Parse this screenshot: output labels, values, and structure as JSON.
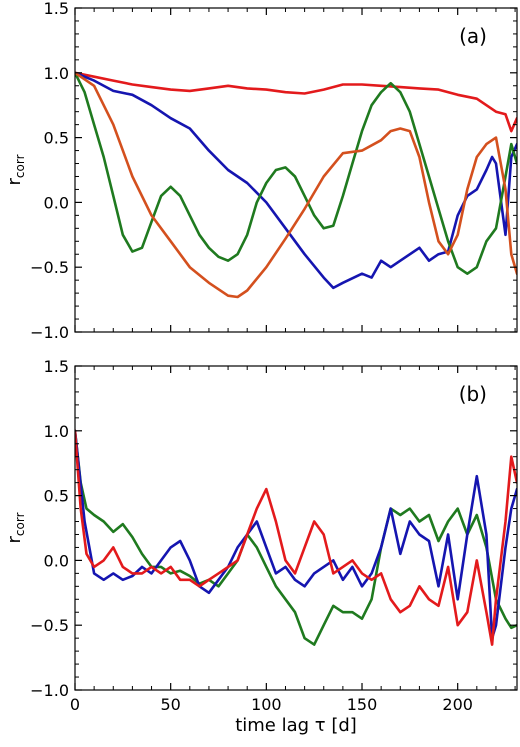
{
  "chart_data": [
    {
      "type": "line",
      "panel_label": "(a)",
      "xlabel": "",
      "ylabel": "r",
      "ylabel_subscript": "corr",
      "xlim": [
        0,
        231
      ],
      "ylim": [
        -1.0,
        1.5
      ],
      "yticks": [
        -1.0,
        -0.5,
        0.0,
        0.5,
        1.0,
        1.5
      ],
      "ytick_labels": [
        "−1.0",
        "−0.5",
        "0.0",
        "0.5",
        "1.0",
        "1.5"
      ],
      "xticks": [
        0,
        50,
        100,
        150,
        200
      ],
      "xtick_labels": [],
      "grid": false,
      "series": [
        {
          "color": "#e31a1c",
          "x": [
            0,
            10,
            20,
            30,
            40,
            50,
            60,
            70,
            80,
            90,
            100,
            110,
            120,
            130,
            140,
            150,
            160,
            170,
            180,
            190,
            200,
            210,
            215,
            220,
            225,
            228,
            231
          ],
          "y": [
            1.0,
            0.97,
            0.94,
            0.91,
            0.89,
            0.87,
            0.86,
            0.88,
            0.9,
            0.88,
            0.87,
            0.85,
            0.84,
            0.87,
            0.91,
            0.91,
            0.9,
            0.89,
            0.88,
            0.87,
            0.83,
            0.8,
            0.75,
            0.7,
            0.68,
            0.55,
            0.65
          ]
        },
        {
          "color": "#1515b0",
          "x": [
            0,
            10,
            20,
            30,
            40,
            50,
            60,
            70,
            80,
            90,
            100,
            110,
            120,
            130,
            135,
            140,
            150,
            155,
            160,
            165,
            170,
            180,
            185,
            190,
            195,
            200,
            205,
            210,
            215,
            218,
            220,
            225,
            228,
            231
          ],
          "y": [
            1.0,
            0.94,
            0.86,
            0.83,
            0.75,
            0.65,
            0.57,
            0.4,
            0.25,
            0.15,
            0.0,
            -0.2,
            -0.4,
            -0.58,
            -0.66,
            -0.62,
            -0.55,
            -0.58,
            -0.45,
            -0.5,
            -0.45,
            -0.35,
            -0.45,
            -0.4,
            -0.38,
            -0.1,
            0.05,
            0.1,
            0.25,
            0.35,
            0.3,
            -0.25,
            0.35,
            0.45
          ]
        },
        {
          "color": "#1f7a1f",
          "x": [
            0,
            5,
            10,
            15,
            20,
            25,
            30,
            35,
            40,
            45,
            50,
            55,
            60,
            65,
            70,
            75,
            80,
            85,
            90,
            95,
            100,
            105,
            110,
            115,
            120,
            125,
            130,
            135,
            140,
            145,
            150,
            155,
            160,
            165,
            170,
            175,
            180,
            185,
            190,
            195,
            200,
            205,
            210,
            215,
            220,
            225,
            228,
            231
          ],
          "y": [
            1.0,
            0.85,
            0.6,
            0.35,
            0.05,
            -0.25,
            -0.38,
            -0.35,
            -0.15,
            0.05,
            0.12,
            0.05,
            -0.1,
            -0.25,
            -0.35,
            -0.42,
            -0.45,
            -0.4,
            -0.25,
            0.0,
            0.15,
            0.25,
            0.27,
            0.2,
            0.05,
            -0.1,
            -0.2,
            -0.18,
            0.05,
            0.3,
            0.55,
            0.75,
            0.85,
            0.92,
            0.85,
            0.7,
            0.45,
            0.2,
            -0.05,
            -0.3,
            -0.5,
            -0.55,
            -0.5,
            -0.3,
            -0.2,
            0.2,
            0.45,
            0.3
          ]
        },
        {
          "color": "#d4501e",
          "x": [
            0,
            10,
            20,
            30,
            40,
            50,
            60,
            70,
            80,
            85,
            90,
            100,
            110,
            120,
            130,
            140,
            150,
            160,
            165,
            170,
            175,
            180,
            185,
            190,
            195,
            200,
            205,
            210,
            215,
            220,
            225,
            228,
            231
          ],
          "y": [
            1.0,
            0.9,
            0.6,
            0.2,
            -0.1,
            -0.3,
            -0.5,
            -0.62,
            -0.72,
            -0.73,
            -0.68,
            -0.5,
            -0.28,
            -0.05,
            0.2,
            0.38,
            0.4,
            0.48,
            0.55,
            0.57,
            0.55,
            0.35,
            0.0,
            -0.3,
            -0.4,
            -0.25,
            0.1,
            0.35,
            0.45,
            0.5,
            0.1,
            -0.4,
            -0.55
          ]
        }
      ]
    },
    {
      "type": "line",
      "panel_label": "(b)",
      "xlabel": "time lag τ [d]",
      "ylabel": "r",
      "ylabel_subscript": "corr",
      "xlim": [
        0,
        231
      ],
      "ylim": [
        -1.0,
        1.5
      ],
      "yticks": [
        -1.0,
        -0.5,
        0.0,
        0.5,
        1.0,
        1.5
      ],
      "ytick_labels": [
        "−1.0",
        "−0.5",
        "0.0",
        "0.5",
        "1.0",
        "1.5"
      ],
      "xticks": [
        0,
        50,
        100,
        150,
        200
      ],
      "xtick_labels": [
        "0",
        "50",
        "100",
        "150",
        "200"
      ],
      "grid": false,
      "series": [
        {
          "color": "#1f7a1f",
          "x": [
            0,
            3,
            6,
            10,
            15,
            20,
            25,
            30,
            35,
            40,
            45,
            50,
            55,
            60,
            65,
            70,
            75,
            80,
            85,
            90,
            95,
            100,
            105,
            110,
            115,
            120,
            125,
            130,
            135,
            140,
            145,
            150,
            155,
            160,
            165,
            170,
            175,
            180,
            185,
            190,
            195,
            200,
            205,
            210,
            215,
            220,
            225,
            228,
            231
          ],
          "y": [
            1.0,
            0.6,
            0.4,
            0.35,
            0.3,
            0.22,
            0.28,
            0.18,
            0.05,
            -0.05,
            -0.05,
            -0.1,
            -0.08,
            -0.12,
            -0.18,
            -0.15,
            -0.2,
            -0.1,
            0.0,
            0.2,
            0.1,
            -0.05,
            -0.2,
            -0.3,
            -0.4,
            -0.6,
            -0.65,
            -0.5,
            -0.35,
            -0.4,
            -0.4,
            -0.45,
            -0.3,
            0.1,
            0.4,
            0.35,
            0.4,
            0.3,
            0.35,
            0.15,
            0.3,
            0.4,
            0.2,
            0.35,
            0.1,
            -0.3,
            -0.45,
            -0.52,
            -0.5
          ]
        },
        {
          "color": "#1515b0",
          "x": [
            0,
            5,
            10,
            15,
            20,
            25,
            30,
            35,
            40,
            45,
            50,
            55,
            60,
            65,
            70,
            75,
            80,
            85,
            90,
            95,
            100,
            105,
            110,
            115,
            120,
            125,
            130,
            135,
            140,
            145,
            150,
            155,
            160,
            165,
            170,
            175,
            180,
            185,
            190,
            195,
            200,
            205,
            210,
            215,
            218,
            220,
            225,
            228,
            231
          ],
          "y": [
            1.0,
            0.3,
            -0.1,
            -0.15,
            -0.1,
            -0.15,
            -0.12,
            -0.05,
            -0.1,
            0.0,
            0.1,
            0.15,
            0.0,
            -0.2,
            -0.25,
            -0.15,
            -0.05,
            0.1,
            0.2,
            0.3,
            0.1,
            -0.1,
            -0.05,
            -0.15,
            -0.2,
            -0.1,
            -0.05,
            0.0,
            -0.15,
            -0.05,
            -0.2,
            -0.1,
            0.1,
            0.4,
            0.05,
            0.3,
            0.2,
            0.15,
            -0.2,
            0.2,
            -0.3,
            0.2,
            0.65,
            0.2,
            -0.6,
            -0.5,
            0.1,
            0.4,
            0.55
          ]
        },
        {
          "color": "#e31a1c",
          "x": [
            0,
            3,
            6,
            10,
            15,
            20,
            25,
            30,
            35,
            40,
            45,
            50,
            55,
            60,
            65,
            70,
            75,
            80,
            85,
            90,
            95,
            100,
            105,
            110,
            115,
            120,
            125,
            130,
            135,
            140,
            145,
            150,
            155,
            160,
            165,
            170,
            175,
            180,
            185,
            190,
            195,
            200,
            205,
            210,
            215,
            218,
            220,
            225,
            228,
            231
          ],
          "y": [
            1.0,
            0.4,
            0.05,
            -0.05,
            0.0,
            0.1,
            -0.05,
            -0.1,
            -0.1,
            -0.05,
            -0.1,
            -0.05,
            -0.15,
            -0.15,
            -0.2,
            -0.15,
            -0.1,
            -0.05,
            0.0,
            0.2,
            0.4,
            0.55,
            0.3,
            0.0,
            -0.1,
            0.1,
            0.3,
            0.2,
            -0.1,
            -0.05,
            0.0,
            -0.1,
            -0.15,
            -0.1,
            -0.3,
            -0.4,
            -0.35,
            -0.2,
            -0.3,
            -0.35,
            -0.05,
            -0.5,
            -0.4,
            0.0,
            -0.4,
            -0.65,
            -0.3,
            0.3,
            0.8,
            0.6
          ]
        }
      ]
    }
  ]
}
